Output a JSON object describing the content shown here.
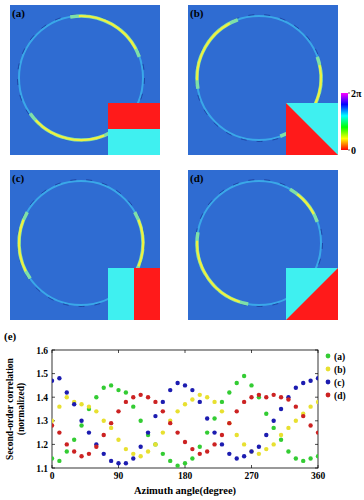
{
  "panels": [
    {
      "label": "(a)"
    },
    {
      "label": "(b)"
    },
    {
      "label": "(c)"
    },
    {
      "label": "(d)"
    }
  ],
  "colorbar": {
    "range": [
      0,
      6.283
    ],
    "ticks": [
      0,
      {
        "value": 6.283,
        "label": "2π"
      }
    ]
  },
  "chart_data": {
    "type": "scatter",
    "label": "(e)",
    "x_label": "Azimuth angle(degree)",
    "y_label": [
      "Second-order correlation",
      "(normalized)"
    ],
    "x": [
      0,
      10,
      20,
      30,
      40,
      50,
      60,
      70,
      80,
      90,
      100,
      110,
      120,
      130,
      140,
      150,
      160,
      170,
      180,
      190,
      200,
      210,
      220,
      230,
      240,
      250,
      260,
      270,
      280,
      290,
      300,
      310,
      320,
      330,
      340,
      350,
      360
    ],
    "series": [
      {
        "name": "(a)",
        "color": "#33cc33",
        "values": [
          1.14,
          1.13,
          1.17,
          1.22,
          1.28,
          1.35,
          1.4,
          1.44,
          1.45,
          1.43,
          1.42,
          1.36,
          1.3,
          1.24,
          1.2,
          1.16,
          1.13,
          1.11,
          1.12,
          1.14,
          1.19,
          1.25,
          1.31,
          1.38,
          1.42,
          1.46,
          1.49,
          1.45,
          1.4,
          1.33,
          1.27,
          1.22,
          1.17,
          1.14,
          1.13,
          1.14,
          1.15
        ]
      },
      {
        "name": "(b)",
        "color": "#e8e030",
        "values": [
          1.3,
          1.36,
          1.4,
          1.38,
          1.37,
          1.36,
          1.34,
          1.3,
          1.27,
          1.22,
          1.18,
          1.16,
          1.15,
          1.17,
          1.2,
          1.25,
          1.3,
          1.34,
          1.37,
          1.39,
          1.41,
          1.4,
          1.38,
          1.34,
          1.29,
          1.24,
          1.2,
          1.17,
          1.16,
          1.18,
          1.2,
          1.24,
          1.27,
          1.3,
          1.33,
          1.36,
          1.38
        ]
      },
      {
        "name": "(c)",
        "color": "#1c1cb0",
        "values": [
          1.47,
          1.48,
          1.42,
          1.37,
          1.3,
          1.25,
          1.2,
          1.16,
          1.13,
          1.12,
          1.12,
          1.14,
          1.19,
          1.25,
          1.32,
          1.38,
          1.43,
          1.46,
          1.45,
          1.43,
          1.38,
          1.31,
          1.25,
          1.2,
          1.16,
          1.14,
          1.15,
          1.17,
          1.19,
          1.24,
          1.3,
          1.35,
          1.4,
          1.44,
          1.46,
          1.47,
          1.48
        ]
      },
      {
        "name": "(d)",
        "color": "#cc2222",
        "values": [
          1.28,
          1.25,
          1.2,
          1.17,
          1.15,
          1.16,
          1.19,
          1.24,
          1.29,
          1.34,
          1.38,
          1.4,
          1.41,
          1.4,
          1.38,
          1.34,
          1.29,
          1.25,
          1.21,
          1.18,
          1.16,
          1.17,
          1.2,
          1.24,
          1.29,
          1.34,
          1.38,
          1.4,
          1.41,
          1.4,
          1.41,
          1.4,
          1.39,
          1.36,
          1.32,
          1.28,
          1.25
        ]
      }
    ],
    "xlim": [
      0,
      360
    ],
    "xticks": [
      0,
      90,
      180,
      270,
      360
    ],
    "ylim": [
      1.1,
      1.6
    ],
    "yticks": [
      1.1,
      1.2,
      1.3,
      1.4,
      1.5,
      1.6
    ],
    "marker": "circle",
    "legend": "top-right"
  }
}
